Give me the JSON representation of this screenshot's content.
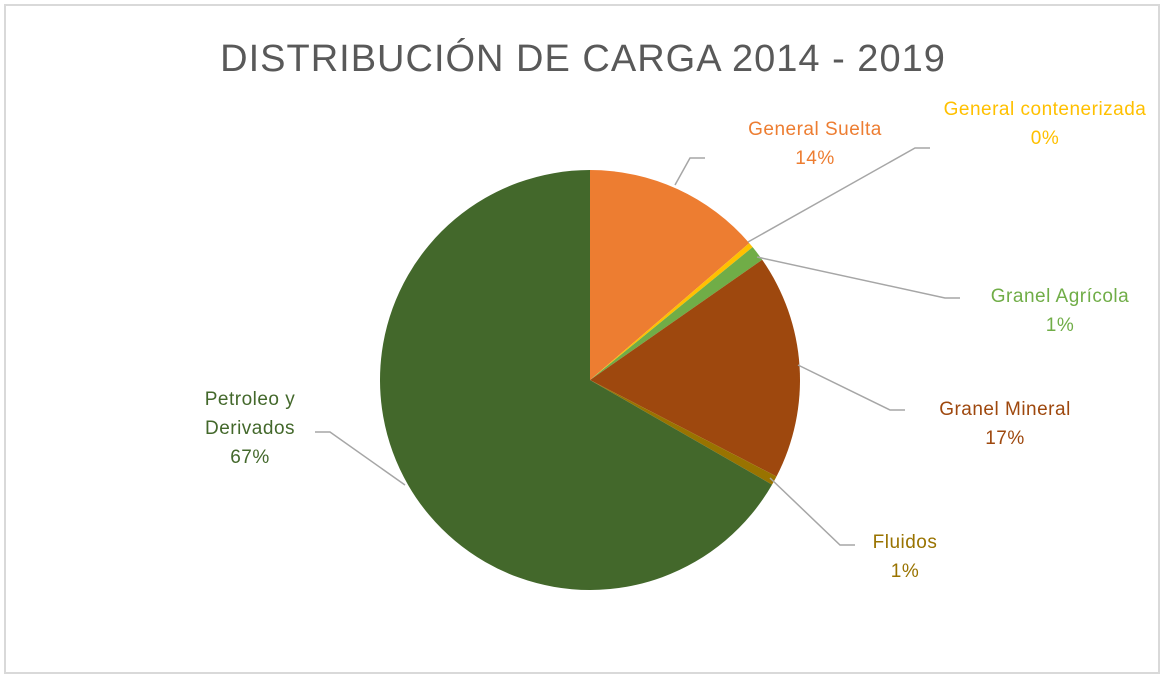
{
  "chart_data": {
    "type": "pie",
    "title": "DISTRIBUCIÓN DE CARGA 2014 - 2019",
    "categories": [
      "General Suelta",
      "General contenerizada",
      "Granel Agrícola",
      "Granel Mineral",
      "Fluidos",
      "Petroleo y Derivados"
    ],
    "values": [
      13.7,
      0.4,
      1.2,
      17.3,
      0.7,
      66.7
    ],
    "value_labels": [
      "14%",
      "0%",
      "1%",
      "17%",
      "1%",
      "67%"
    ],
    "colors": [
      "#ed7d31",
      "#ffc000",
      "#70ad47",
      "#9e480e",
      "#997300",
      "#43682b"
    ],
    "label_colors": [
      "#ed7d31",
      "#ffc000",
      "#70ad47",
      "#9e480e",
      "#997300",
      "#43682b"
    ]
  }
}
